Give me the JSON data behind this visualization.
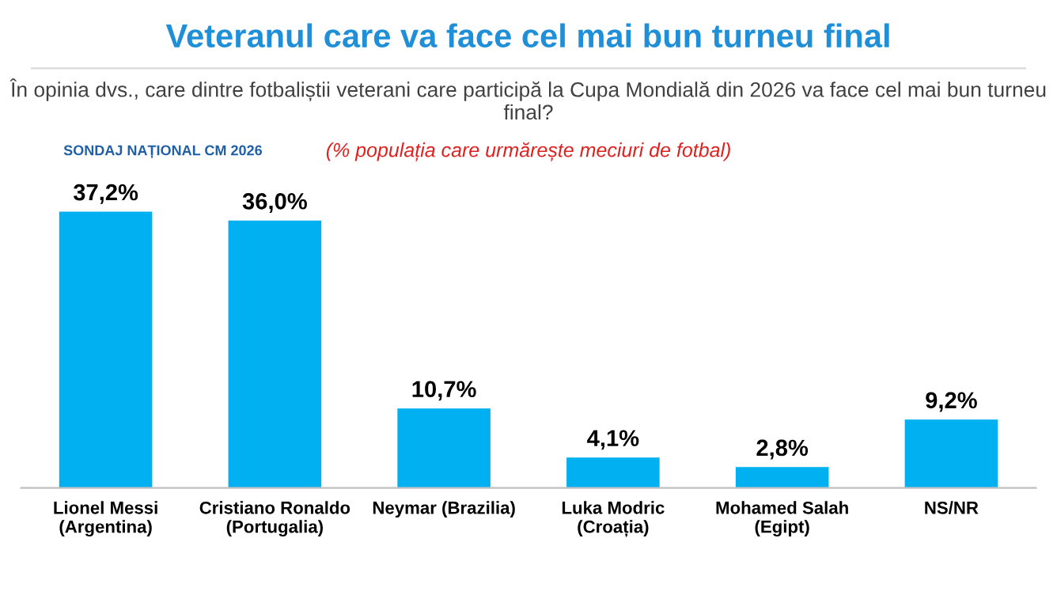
{
  "chart_data": {
    "type": "bar",
    "title": "Veteranul care va face cel mai bun turneu final",
    "subtitle": "În opinia dvs., care dintre fotbaliștii veterani care participă la Cupa Mondială din 2026 va face cel mai bun turneu final?",
    "annotations": [
      "(% populația care urmărește meciuri de fotbal)",
      "SONDAJ NAȚIONAL CM 2026"
    ],
    "categories": [
      "Lionel Messi\n(Argentina)",
      "Cristiano Ronaldo\n(Portugalia)",
      "Neymar (Brazilia)",
      "Luka Modric\n(Croația)",
      "Mohamed Salah\n(Egipt)",
      "NS/NR"
    ],
    "values": [
      37.2,
      36.0,
      10.7,
      4.1,
      2.8,
      9.2
    ],
    "value_labels": [
      "37,2%",
      "36,0%",
      "10,7%",
      "4,1%",
      "2,8%",
      "9,2%"
    ],
    "color": "#00b0f0",
    "grid": false,
    "legend": false
  }
}
